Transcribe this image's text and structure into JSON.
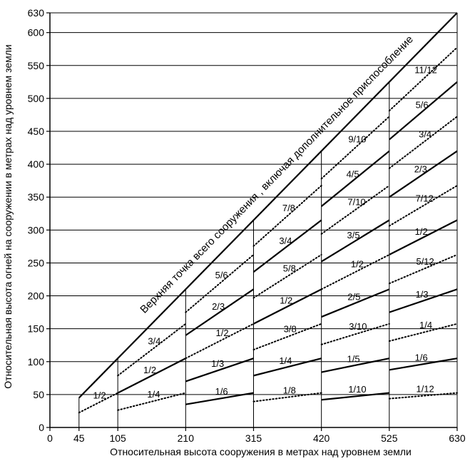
{
  "chart_data": {
    "type": "line",
    "xlabel": "Относительная высота сооружения в метрах над уровнем земли",
    "ylabel": "Относительная высота огней на сооружении в метрах над уровнем земли",
    "diagonal_label": "Верхняя точка всего сооружения , включая дополнительное приспособление",
    "x_ticks": [
      {
        "value": 0,
        "label": "0"
      },
      {
        "value": 45,
        "label": "45"
      },
      {
        "value": 105,
        "label": "105"
      },
      {
        "value": 210,
        "label": "210"
      },
      {
        "value": 315,
        "label": "315"
      },
      {
        "value": 420,
        "label": "420"
      },
      {
        "value": 525,
        "label": "525"
      },
      {
        "value": 630,
        "label": "630"
      }
    ],
    "y_ticks": [
      {
        "value": 0,
        "label": "0"
      },
      {
        "value": 50,
        "label": "50"
      },
      {
        "value": 100,
        "label": "100"
      },
      {
        "value": 150,
        "label": "150"
      },
      {
        "value": 200,
        "label": "200"
      },
      {
        "value": 250,
        "label": "250"
      },
      {
        "value": 300,
        "label": "300"
      },
      {
        "value": 350,
        "label": "350"
      },
      {
        "value": 400,
        "label": "400"
      },
      {
        "value": 450,
        "label": "450"
      },
      {
        "value": 500,
        "label": "500"
      },
      {
        "value": 550,
        "label": "550"
      },
      {
        "value": 600,
        "label": "600"
      },
      {
        "value": 630,
        "label": "630"
      }
    ],
    "xlim": [
      0,
      630
    ],
    "ylim": [
      0,
      630
    ],
    "grid": "horizontal",
    "colors": {
      "line": "#000000",
      "background": "#ffffff"
    },
    "regions": [
      {
        "x": [
          45,
          105
        ],
        "lines": [
          {
            "label": "1/2",
            "style": "dotted"
          }
        ]
      },
      {
        "x": [
          105,
          210
        ],
        "lines": [
          {
            "label": "1/4",
            "style": "dotted"
          },
          {
            "label": "1/2",
            "style": "solid"
          },
          {
            "label": "3/4",
            "style": "dotted"
          }
        ]
      },
      {
        "x": [
          210,
          315
        ],
        "lines": [
          {
            "label": "1/6",
            "style": "solid"
          },
          {
            "label": "1/3",
            "style": "solid"
          },
          {
            "label": "1/2",
            "style": "dotted"
          },
          {
            "label": "2/3",
            "style": "solid"
          },
          {
            "label": "5/6",
            "style": "dotted"
          }
        ]
      },
      {
        "x": [
          315,
          420
        ],
        "lines": [
          {
            "label": "1/8",
            "style": "dotted"
          },
          {
            "label": "1/4",
            "style": "solid"
          },
          {
            "label": "3/8",
            "style": "dotted"
          },
          {
            "label": "1/2",
            "style": "solid"
          },
          {
            "label": "5/8",
            "style": "dotted"
          },
          {
            "label": "3/4",
            "style": "solid"
          },
          {
            "label": "7/8",
            "style": "dotted"
          }
        ]
      },
      {
        "x": [
          420,
          525
        ],
        "lines": [
          {
            "label": "1/10",
            "style": "solid"
          },
          {
            "label": "1/5",
            "style": "solid"
          },
          {
            "label": "3/10",
            "style": "dotted"
          },
          {
            "label": "2/5",
            "style": "solid"
          },
          {
            "label": "1/2",
            "style": "dotted"
          },
          {
            "label": "3/5",
            "style": "solid"
          },
          {
            "label": "7/10",
            "style": "dotted"
          },
          {
            "label": "4/5",
            "style": "solid"
          },
          {
            "label": "9/10",
            "style": "dotted"
          }
        ]
      },
      {
        "x": [
          525,
          630
        ],
        "lines": [
          {
            "label": "1/12",
            "style": "dotted"
          },
          {
            "label": "1/6",
            "style": "solid"
          },
          {
            "label": "1/4",
            "style": "dotted"
          },
          {
            "label": "1/3",
            "style": "solid"
          },
          {
            "label": "5/12",
            "style": "dotted"
          },
          {
            "label": "1/2",
            "style": "solid"
          },
          {
            "label": "7/12",
            "style": "dotted"
          },
          {
            "label": "2/3",
            "style": "solid"
          },
          {
            "label": "3/4",
            "style": "dotted"
          },
          {
            "label": "5/6",
            "style": "solid"
          },
          {
            "label": "11/12",
            "style": "dotted"
          }
        ]
      }
    ]
  }
}
